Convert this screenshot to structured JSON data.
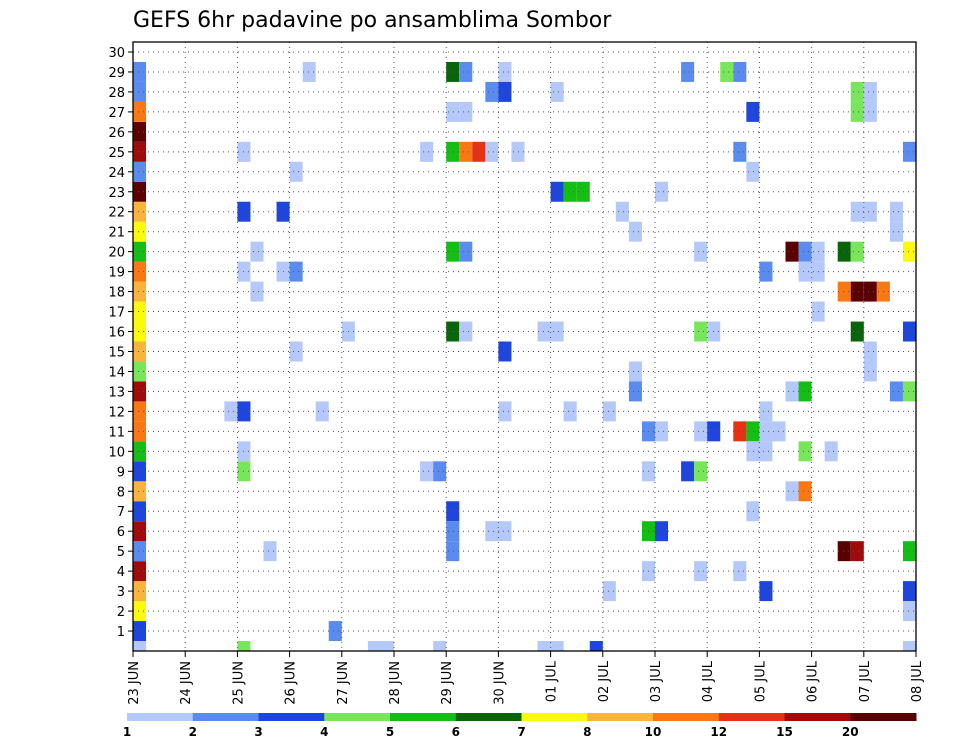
{
  "chart_data": {
    "type": "heatmap",
    "title": "GEFS 6hr padavine po ansamblima Sombor",
    "x_labels": [
      "23 JUN",
      "24 JUN",
      "25 JUN",
      "26 JUN",
      "27 JUN",
      "28 JUN",
      "29 JUN",
      "30 JUN",
      "01 JUL",
      "02 JUL",
      "03 JUL",
      "04 JUL",
      "05 JUL",
      "06 JUL",
      "07 JUL",
      "08 JUL"
    ],
    "y_labels": [
      "1",
      "2",
      "3",
      "4",
      "5",
      "6",
      "7",
      "8",
      "9",
      "10",
      "11",
      "12",
      "13",
      "14",
      "15",
      "16",
      "17",
      "18",
      "19",
      "20",
      "21",
      "22",
      "23",
      "24",
      "25",
      "26",
      "27",
      "28",
      "29",
      "30"
    ],
    "y_range": [
      0,
      30
    ],
    "x_range_days": [
      0,
      15
    ],
    "time_step_hours": 6,
    "grid": "dotted",
    "colorbar": {
      "boundaries": [
        "1",
        "2",
        "3",
        "4",
        "5",
        "6",
        "7",
        "8",
        "10",
        "12",
        "15",
        "20"
      ],
      "colors": [
        "#b4c8fa",
        "#5a8cf0",
        "#1e46dc",
        "#78e65a",
        "#14be14",
        "#0a640a",
        "#fafa0a",
        "#fab43c",
        "#fa7814",
        "#e63214",
        "#a00a0a",
        "#5a0000"
      ]
    },
    "cells": [
      {
        "x": "23 JUN 00Z",
        "y": 0,
        "v": 1.5
      },
      {
        "x": "23 JUN 00Z",
        "y": 1,
        "v": 3.5
      },
      {
        "x": "23 JUN 00Z",
        "y": 2,
        "v": 7.5
      },
      {
        "x": "23 JUN 00Z",
        "y": 3,
        "v": 9
      },
      {
        "x": "23 JUN 00Z",
        "y": 4,
        "v": 17
      },
      {
        "x": "23 JUN 00Z",
        "y": 5,
        "v": 2.5
      },
      {
        "x": "23 JUN 00Z",
        "y": 6,
        "v": 17
      },
      {
        "x": "23 JUN 00Z",
        "y": 7,
        "v": 3.5
      },
      {
        "x": "23 JUN 00Z",
        "y": 8,
        "v": 9
      },
      {
        "x": "23 JUN 00Z",
        "y": 9,
        "v": 3.5
      },
      {
        "x": "23 JUN 00Z",
        "y": 10,
        "v": 5.5
      },
      {
        "x": "23 JUN 00Z",
        "y": 11,
        "v": 11
      },
      {
        "x": "23 JUN 00Z",
        "y": 12,
        "v": 11
      },
      {
        "x": "23 JUN 00Z",
        "y": 13,
        "v": 17
      },
      {
        "x": "23 JUN 00Z",
        "y": 14,
        "v": 4.5
      },
      {
        "x": "23 JUN 00Z",
        "y": 15,
        "v": 9
      },
      {
        "x": "23 JUN 00Z",
        "y": 16,
        "v": 7.5
      },
      {
        "x": "23 JUN 00Z",
        "y": 17,
        "v": 7.5
      },
      {
        "x": "23 JUN 00Z",
        "y": 18,
        "v": 9
      },
      {
        "x": "23 JUN 00Z",
        "y": 19,
        "v": 11
      },
      {
        "x": "23 JUN 00Z",
        "y": 20,
        "v": 5.5
      },
      {
        "x": "23 JUN 00Z",
        "y": 21,
        "v": 7.5
      },
      {
        "x": "23 JUN 00Z",
        "y": 22,
        "v": 9
      },
      {
        "x": "23 JUN 00Z",
        "y": 23,
        "v": 25
      },
      {
        "x": "23 JUN 00Z",
        "y": 24,
        "v": 2.5
      },
      {
        "x": "23 JUN 00Z",
        "y": 25,
        "v": 17
      },
      {
        "x": "23 JUN 00Z",
        "y": 26,
        "v": 25
      },
      {
        "x": "23 JUN 00Z",
        "y": 27,
        "v": 11
      },
      {
        "x": "23 JUN 00Z",
        "y": 28,
        "v": 2.5
      },
      {
        "x": "23 JUN 00Z",
        "y": 29,
        "v": 2.5
      },
      {
        "x": "25 JUN 00Z",
        "y": 0,
        "v": 4.5
      },
      {
        "x": "25 JUN 00Z",
        "y": 9,
        "v": 4.5
      },
      {
        "x": "25 JUN 00Z",
        "y": 25,
        "v": 1.5
      },
      {
        "x": "25 JUN 00Z",
        "y": 22,
        "v": 3.5
      },
      {
        "x": "25 JUN 00Z",
        "y": 12,
        "v": 3.5
      },
      {
        "x": "25 JUN 00Z",
        "y": 10,
        "v": 1.5
      },
      {
        "x": "25 JUN 00Z",
        "y": 19,
        "v": 1.5
      },
      {
        "x": "24 JUN 18Z",
        "y": 12,
        "v": 1.5
      },
      {
        "x": "25 JUN 06Z",
        "y": 18,
        "v": 1.5
      },
      {
        "x": "25 JUN 06Z",
        "y": 20,
        "v": 1.5
      },
      {
        "x": "25 JUN 12Z",
        "y": 5,
        "v": 1.5
      },
      {
        "x": "25 JUN 18Z",
        "y": 22,
        "v": 3.5
      },
      {
        "x": "25 JUN 18Z",
        "y": 19,
        "v": 1.5
      },
      {
        "x": "26 JUN 00Z",
        "y": 24,
        "v": 1.5
      },
      {
        "x": "26 JUN 00Z",
        "y": 19,
        "v": 2.5
      },
      {
        "x": "26 JUN 00Z",
        "y": 15,
        "v": 1.5
      },
      {
        "x": "26 JUN 06Z",
        "y": 29,
        "v": 1.5
      },
      {
        "x": "26 JUN 12Z",
        "y": 12,
        "v": 1.5
      },
      {
        "x": "26 JUN 18Z",
        "y": 1,
        "v": 2.5
      },
      {
        "x": "27 JUN 00Z",
        "y": 16,
        "v": 1.5
      },
      {
        "x": "27 JUN 12Z",
        "y": 0,
        "v": 1.5
      },
      {
        "x": "27 JUN 18Z",
        "y": 0,
        "v": 1.5
      },
      {
        "x": "28 JUN 12Z",
        "y": 25,
        "v": 1.5
      },
      {
        "x": "28 JUN 12Z",
        "y": 9,
        "v": 1.5
      },
      {
        "x": "28 JUN 18Z",
        "y": 0,
        "v": 1.5
      },
      {
        "x": "28 JUN 18Z",
        "y": 9,
        "v": 2.5
      },
      {
        "x": "29 JUN 00Z",
        "y": 29,
        "v": 6.5
      },
      {
        "x": "29 JUN 00Z",
        "y": 27,
        "v": 1.5
      },
      {
        "x": "29 JUN 00Z",
        "y": 25,
        "v": 5.5
      },
      {
        "x": "29 JUN 00Z",
        "y": 20,
        "v": 5.5
      },
      {
        "x": "29 JUN 00Z",
        "y": 16,
        "v": 6.5
      },
      {
        "x": "29 JUN 00Z",
        "y": 7,
        "v": 3.5
      },
      {
        "x": "29 JUN 00Z",
        "y": 6,
        "v": 2.5
      },
      {
        "x": "29 JUN 00Z",
        "y": 5,
        "v": 2.5
      },
      {
        "x": "29 JUN 06Z",
        "y": 29,
        "v": 2.5
      },
      {
        "x": "29 JUN 06Z",
        "y": 27,
        "v": 1.5
      },
      {
        "x": "29 JUN 06Z",
        "y": 25,
        "v": 11
      },
      {
        "x": "29 JUN 06Z",
        "y": 20,
        "v": 2.5
      },
      {
        "x": "29 JUN 06Z",
        "y": 16,
        "v": 1.5
      },
      {
        "x": "29 JUN 12Z",
        "y": 25,
        "v": 13
      },
      {
        "x": "29 JUN 18Z",
        "y": 25,
        "v": 1.5
      },
      {
        "x": "29 JUN 18Z",
        "y": 28,
        "v": 2.5
      },
      {
        "x": "29 JUN 18Z",
        "y": 6,
        "v": 1.5
      },
      {
        "x": "30 JUN 00Z",
        "y": 29,
        "v": 1.5
      },
      {
        "x": "30 JUN 00Z",
        "y": 28,
        "v": 3.5
      },
      {
        "x": "30 JUN 00Z",
        "y": 15,
        "v": 3.5
      },
      {
        "x": "30 JUN 00Z",
        "y": 12,
        "v": 1.5
      },
      {
        "x": "30 JUN 00Z",
        "y": 6,
        "v": 1.5
      },
      {
        "x": "30 JUN 06Z",
        "y": 25,
        "v": 1.5
      },
      {
        "x": "30 JUN 18Z",
        "y": 16,
        "v": 1.5
      },
      {
        "x": "30 JUN 18Z",
        "y": 0,
        "v": 1.5
      },
      {
        "x": "01 JUL 00Z",
        "y": 28,
        "v": 1.5
      },
      {
        "x": "01 JUL 00Z",
        "y": 16,
        "v": 1.5
      },
      {
        "x": "01 JUL 00Z",
        "y": 0,
        "v": 1.5
      },
      {
        "x": "01 JUL 00Z",
        "y": 23,
        "v": 3.5
      },
      {
        "x": "01 JUL 06Z",
        "y": 23,
        "v": 5.5
      },
      {
        "x": "01 JUL 06Z",
        "y": 12,
        "v": 1.5
      },
      {
        "x": "01 JUL 12Z",
        "y": 23,
        "v": 5.5
      },
      {
        "x": "01 JUL 18Z",
        "y": 0,
        "v": 3.5
      },
      {
        "x": "02 JUL 00Z",
        "y": 12,
        "v": 1.5
      },
      {
        "x": "02 JUL 00Z",
        "y": 3,
        "v": 1.5
      },
      {
        "x": "02 JUL 06Z",
        "y": 22,
        "v": 1.5
      },
      {
        "x": "02 JUL 12Z",
        "y": 21,
        "v": 1.5
      },
      {
        "x": "02 JUL 12Z",
        "y": 14,
        "v": 1.5
      },
      {
        "x": "02 JUL 12Z",
        "y": 13,
        "v": 2.5
      },
      {
        "x": "02 JUL 18Z",
        "y": 11,
        "v": 2.5
      },
      {
        "x": "02 JUL 18Z",
        "y": 9,
        "v": 1.5
      },
      {
        "x": "02 JUL 18Z",
        "y": 6,
        "v": 5.5
      },
      {
        "x": "02 JUL 18Z",
        "y": 4,
        "v": 1.5
      },
      {
        "x": "03 JUL 00Z",
        "y": 11,
        "v": 1.5
      },
      {
        "x": "03 JUL 00Z",
        "y": 6,
        "v": 3.5
      },
      {
        "x": "03 JUL 00Z",
        "y": 23,
        "v": 1.5
      },
      {
        "x": "03 JUL 12Z",
        "y": 9,
        "v": 3.5
      },
      {
        "x": "03 JUL 12Z",
        "y": 29,
        "v": 2.5
      },
      {
        "x": "03 JUL 18Z",
        "y": 20,
        "v": 1.5
      },
      {
        "x": "03 JUL 18Z",
        "y": 16,
        "v": 4.5
      },
      {
        "x": "03 JUL 18Z",
        "y": 11,
        "v": 1.5
      },
      {
        "x": "03 JUL 18Z",
        "y": 9,
        "v": 4.5
      },
      {
        "x": "03 JUL 18Z",
        "y": 4,
        "v": 1.5
      },
      {
        "x": "04 JUL 00Z",
        "y": 16,
        "v": 1.5
      },
      {
        "x": "04 JUL 00Z",
        "y": 11,
        "v": 3.5
      },
      {
        "x": "04 JUL 06Z",
        "y": 29,
        "v": 4.5
      },
      {
        "x": "04 JUL 12Z",
        "y": 29,
        "v": 2.5
      },
      {
        "x": "04 JUL 12Z",
        "y": 25,
        "v": 2.5
      },
      {
        "x": "04 JUL 12Z",
        "y": 11,
        "v": 13
      },
      {
        "x": "04 JUL 12Z",
        "y": 4,
        "v": 1.5
      },
      {
        "x": "04 JUL 18Z",
        "y": 27,
        "v": 3.5
      },
      {
        "x": "04 JUL 18Z",
        "y": 24,
        "v": 1.5
      },
      {
        "x": "04 JUL 18Z",
        "y": 11,
        "v": 5.5
      },
      {
        "x": "04 JUL 18Z",
        "y": 10,
        "v": 1.5
      },
      {
        "x": "04 JUL 18Z",
        "y": 7,
        "v": 1.5
      },
      {
        "x": "05 JUL 00Z",
        "y": 19,
        "v": 2.5
      },
      {
        "x": "05 JUL 00Z",
        "y": 12,
        "v": 1.5
      },
      {
        "x": "05 JUL 00Z",
        "y": 11,
        "v": 1.5
      },
      {
        "x": "05 JUL 00Z",
        "y": 10,
        "v": 1.5
      },
      {
        "x": "05 JUL 00Z",
        "y": 3,
        "v": 3.5
      },
      {
        "x": "05 JUL 06Z",
        "y": 11,
        "v": 1.5
      },
      {
        "x": "05 JUL 12Z",
        "y": 20,
        "v": 25
      },
      {
        "x": "05 JUL 12Z",
        "y": 13,
        "v": 1.5
      },
      {
        "x": "05 JUL 12Z",
        "y": 8,
        "v": 1.5
      },
      {
        "x": "05 JUL 18Z",
        "y": 20,
        "v": 2.5
      },
      {
        "x": "05 JUL 18Z",
        "y": 19,
        "v": 1.5
      },
      {
        "x": "05 JUL 18Z",
        "y": 13,
        "v": 5.5
      },
      {
        "x": "05 JUL 18Z",
        "y": 10,
        "v": 4.5
      },
      {
        "x": "05 JUL 18Z",
        "y": 8,
        "v": 11
      },
      {
        "x": "06 JUL 00Z",
        "y": 20,
        "v": 1.5
      },
      {
        "x": "06 JUL 00Z",
        "y": 19,
        "v": 1.5
      },
      {
        "x": "06 JUL 00Z",
        "y": 17,
        "v": 1.5
      },
      {
        "x": "06 JUL 06Z",
        "y": 10,
        "v": 1.5
      },
      {
        "x": "06 JUL 12Z",
        "y": 20,
        "v": 6.5
      },
      {
        "x": "06 JUL 12Z",
        "y": 18,
        "v": 11
      },
      {
        "x": "06 JUL 12Z",
        "y": 5,
        "v": 25
      },
      {
        "x": "06 JUL 18Z",
        "y": 28,
        "v": 4.5
      },
      {
        "x": "06 JUL 18Z",
        "y": 27,
        "v": 4.5
      },
      {
        "x": "06 JUL 18Z",
        "y": 22,
        "v": 1.5
      },
      {
        "x": "06 JUL 18Z",
        "y": 20,
        "v": 4.5
      },
      {
        "x": "06 JUL 18Z",
        "y": 18,
        "v": 25
      },
      {
        "x": "06 JUL 18Z",
        "y": 16,
        "v": 6.5
      },
      {
        "x": "06 JUL 18Z",
        "y": 5,
        "v": 17
      },
      {
        "x": "07 JUL 00Z",
        "y": 28,
        "v": 1.5
      },
      {
        "x": "07 JUL 00Z",
        "y": 27,
        "v": 1.5
      },
      {
        "x": "07 JUL 00Z",
        "y": 22,
        "v": 1.5
      },
      {
        "x": "07 JUL 00Z",
        "y": 18,
        "v": 25
      },
      {
        "x": "07 JUL 00Z",
        "y": 15,
        "v": 1.5
      },
      {
        "x": "07 JUL 00Z",
        "y": 14,
        "v": 1.5
      },
      {
        "x": "07 JUL 06Z",
        "y": 18,
        "v": 11
      },
      {
        "x": "07 JUL 12Z",
        "y": 22,
        "v": 1.5
      },
      {
        "x": "07 JUL 12Z",
        "y": 21,
        "v": 1.5
      },
      {
        "x": "07 JUL 12Z",
        "y": 13,
        "v": 2.5
      },
      {
        "x": "07 JUL 18Z",
        "y": 25,
        "v": 2.5
      },
      {
        "x": "07 JUL 18Z",
        "y": 20,
        "v": 7.5
      },
      {
        "x": "07 JUL 18Z",
        "y": 16,
        "v": 3.5
      },
      {
        "x": "07 JUL 18Z",
        "y": 13,
        "v": 4.5
      },
      {
        "x": "07 JUL 18Z",
        "y": 5,
        "v": 5.5
      },
      {
        "x": "07 JUL 18Z",
        "y": 3,
        "v": 3.5
      },
      {
        "x": "07 JUL 18Z",
        "y": 2,
        "v": 1.5
      },
      {
        "x": "07 JUL 18Z",
        "y": 0,
        "v": 1.5
      }
    ]
  }
}
